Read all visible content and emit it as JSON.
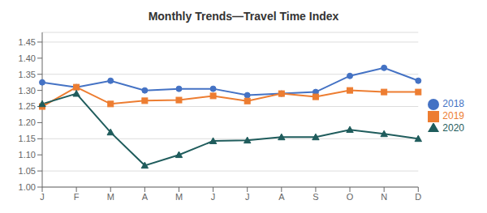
{
  "chart_data": {
    "type": "line",
    "title": "Monthly Trends—Travel Time Index",
    "categories": [
      "J",
      "F",
      "M",
      "A",
      "M",
      "J",
      "J",
      "A",
      "S",
      "O",
      "N",
      "D"
    ],
    "series": [
      {
        "name": "2018",
        "color": "#4472C4",
        "marker": "circle",
        "values": [
          1.325,
          1.31,
          1.33,
          1.3,
          1.305,
          1.305,
          1.285,
          1.29,
          1.295,
          1.345,
          1.37,
          1.33
        ]
      },
      {
        "name": "2019",
        "color": "#ED7D31",
        "marker": "square",
        "values": [
          1.25,
          1.31,
          1.258,
          1.268,
          1.27,
          1.283,
          1.267,
          1.29,
          1.28,
          1.3,
          1.295,
          1.295
        ]
      },
      {
        "name": "2020",
        "color": "#1F5C5C",
        "marker": "triangle",
        "values": [
          1.258,
          1.29,
          1.17,
          1.067,
          1.1,
          1.143,
          1.145,
          1.155,
          1.155,
          1.178,
          1.165,
          1.15
        ]
      }
    ],
    "ylim": [
      1.0,
      1.48
    ],
    "yticks": [
      {
        "value": 1.0,
        "label": "1.00"
      },
      1.05,
      {
        "value": 1.1,
        "label": "1.10"
      },
      1.15,
      {
        "value": 1.2,
        "label": "1.20"
      },
      1.25,
      {
        "value": 1.3,
        "label": "1.30"
      },
      1.35,
      {
        "value": 1.4,
        "label": "1.40"
      },
      1.45
    ],
    "grid": true,
    "legend": "right"
  }
}
